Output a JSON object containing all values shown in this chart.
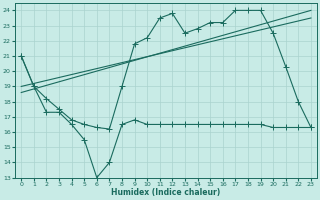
{
  "bg_color": "#c8ebe6",
  "grid_color": "#aad4ce",
  "line_color": "#1a6b5e",
  "x_label": "Humidex (Indice chaleur)",
  "xlim": [
    -0.5,
    23.5
  ],
  "ylim": [
    13,
    24.5
  ],
  "yticks": [
    13,
    14,
    15,
    16,
    17,
    18,
    19,
    20,
    21,
    22,
    23,
    24
  ],
  "xticks": [
    0,
    1,
    2,
    3,
    4,
    5,
    6,
    7,
    8,
    9,
    10,
    11,
    12,
    13,
    14,
    15,
    16,
    17,
    18,
    19,
    20,
    21,
    22,
    23
  ],
  "trend1_x": [
    0,
    23
  ],
  "trend1_y": [
    18.6,
    24.0
  ],
  "trend2_x": [
    0,
    23
  ],
  "trend2_y": [
    19.0,
    23.5
  ],
  "curve_high_x": [
    0,
    1,
    2,
    3,
    4,
    5,
    6,
    7,
    8,
    9,
    10,
    11,
    12,
    13,
    14,
    15,
    16,
    17,
    18,
    19,
    20,
    21,
    22,
    23
  ],
  "curve_high_y": [
    21.0,
    19.0,
    18.2,
    17.5,
    16.8,
    16.5,
    16.3,
    16.2,
    19.0,
    21.8,
    22.2,
    23.5,
    23.8,
    22.5,
    22.8,
    23.2,
    23.2,
    24.0,
    24.0,
    24.0,
    22.5,
    20.3,
    18.0,
    16.3
  ],
  "curve_low_x": [
    0,
    1,
    2,
    3,
    4,
    5,
    6,
    7,
    8,
    9,
    10,
    11,
    12,
    13,
    14,
    15,
    16,
    17,
    18,
    19,
    20,
    21,
    22,
    23
  ],
  "curve_low_y": [
    21.0,
    19.0,
    17.3,
    17.3,
    16.5,
    15.5,
    13.0,
    14.0,
    16.5,
    16.8,
    16.5,
    16.5,
    16.5,
    16.5,
    16.5,
    16.5,
    16.5,
    16.5,
    16.5,
    16.5,
    16.3,
    16.3,
    16.3,
    16.3
  ]
}
